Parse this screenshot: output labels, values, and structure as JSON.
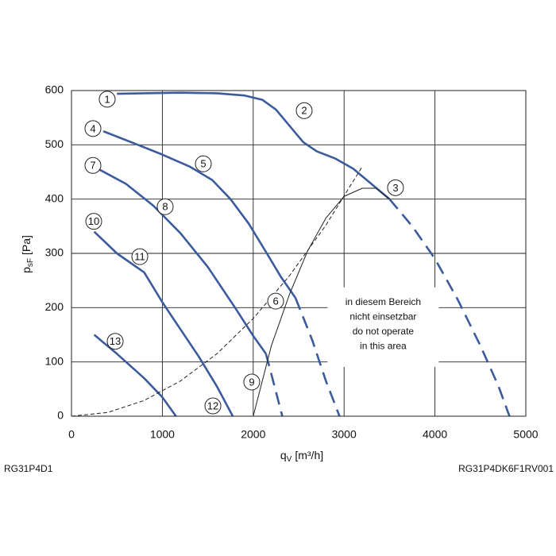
{
  "chart_data": {
    "type": "line",
    "x_label": {
      "main": "q",
      "sub": "V",
      "unit": "[m³/h]"
    },
    "y_label": {
      "main": "p",
      "sub": "sF",
      "unit": "[Pa]"
    },
    "xlim": [
      0,
      5000
    ],
    "ylim": [
      0,
      600
    ],
    "xticks": [
      0,
      1000,
      2000,
      3000,
      4000,
      5000
    ],
    "yticks": [
      0,
      100,
      200,
      300,
      400,
      500,
      600
    ],
    "grid": true,
    "series": [
      {
        "color": "#3b5b9c",
        "dash": false,
        "x": [
          500,
          800,
          1200,
          1600,
          1900,
          2100,
          2250,
          2400,
          2550,
          2700,
          2900,
          3100,
          3300,
          3500
        ],
        "values": [
          594,
          595,
          596,
          595,
          591,
          583,
          565,
          535,
          505,
          488,
          475,
          456,
          428,
          400
        ]
      },
      {
        "color": "#3b5b9c",
        "dash": true,
        "x": [
          3500,
          3750,
          4000,
          4250,
          4500,
          4700,
          4820
        ],
        "values": [
          400,
          350,
          290,
          215,
          130,
          55,
          0
        ]
      },
      {
        "color": "#3b5b9c",
        "dash": false,
        "x": [
          350,
          700,
          1000,
          1300,
          1550,
          1750,
          1950,
          2150,
          2300,
          2465
        ],
        "values": [
          525,
          502,
          482,
          460,
          435,
          400,
          355,
          300,
          258,
          218
        ]
      },
      {
        "color": "#3b5b9c",
        "dash": true,
        "x": [
          2465,
          2650,
          2800,
          2950
        ],
        "values": [
          218,
          140,
          65,
          0
        ]
      },
      {
        "color": "#3b5b9c",
        "dash": false,
        "x": [
          300,
          600,
          900,
          1200,
          1500,
          1800,
          2000,
          2140
        ],
        "values": [
          455,
          428,
          388,
          337,
          275,
          200,
          148,
          115
        ]
      },
      {
        "color": "#3b5b9c",
        "dash": true,
        "x": [
          2140,
          2230,
          2320
        ],
        "values": [
          115,
          58,
          0
        ]
      },
      {
        "color": "#3b5b9c",
        "dash": false,
        "x": [
          250,
          500,
          800,
          1000,
          1200,
          1400,
          1600,
          1775
        ],
        "values": [
          340,
          300,
          265,
          210,
          160,
          110,
          55,
          0
        ]
      },
      {
        "color": "#3b5b9c",
        "dash": false,
        "x": [
          250,
          500,
          800,
          1000,
          1150
        ],
        "values": [
          150,
          115,
          70,
          35,
          0
        ]
      },
      {
        "color": "#222222",
        "dash": true,
        "x": [
          0,
          400,
          800,
          1200,
          1600,
          2000,
          2400,
          2800,
          3200
        ],
        "values": [
          0,
          7,
          29,
          65,
          115,
          180,
          259,
          352,
          460
        ]
      },
      {
        "color": "#222222",
        "dash": false,
        "x": [
          2000,
          2200,
          2400,
          2600,
          2800,
          3000,
          3200,
          3350,
          3500
        ],
        "values": [
          0,
          130,
          225,
          305,
          365,
          405,
          420,
          420,
          400
        ]
      }
    ],
    "annotations": [
      {
        "text": "1",
        "x": 393,
        "y": 584
      },
      {
        "text": "2",
        "x": 2561,
        "y": 563
      },
      {
        "text": "3",
        "x": 3566,
        "y": 421
      },
      {
        "text": "4",
        "x": 236,
        "y": 530
      },
      {
        "text": "5",
        "x": 1451,
        "y": 465
      },
      {
        "text": "6",
        "x": 2247,
        "y": 212
      },
      {
        "text": "7",
        "x": 236,
        "y": 462
      },
      {
        "text": "8",
        "x": 1031,
        "y": 386
      },
      {
        "text": "9",
        "x": 1984,
        "y": 63
      },
      {
        "text": "10",
        "x": 245,
        "y": 359
      },
      {
        "text": "11",
        "x": 752,
        "y": 294
      },
      {
        "text": "12",
        "x": 1556,
        "y": 19
      },
      {
        "text": "13",
        "x": 481,
        "y": 138
      }
    ],
    "note": {
      "lines": [
        "in diesem Bereich",
        "nicht einsetzbar",
        "do not operate",
        "in this area"
      ],
      "x": 3430,
      "y": 167
    }
  },
  "footer": {
    "left": "RG31P4D1",
    "right": "RG31P4DK6F1RV001"
  }
}
